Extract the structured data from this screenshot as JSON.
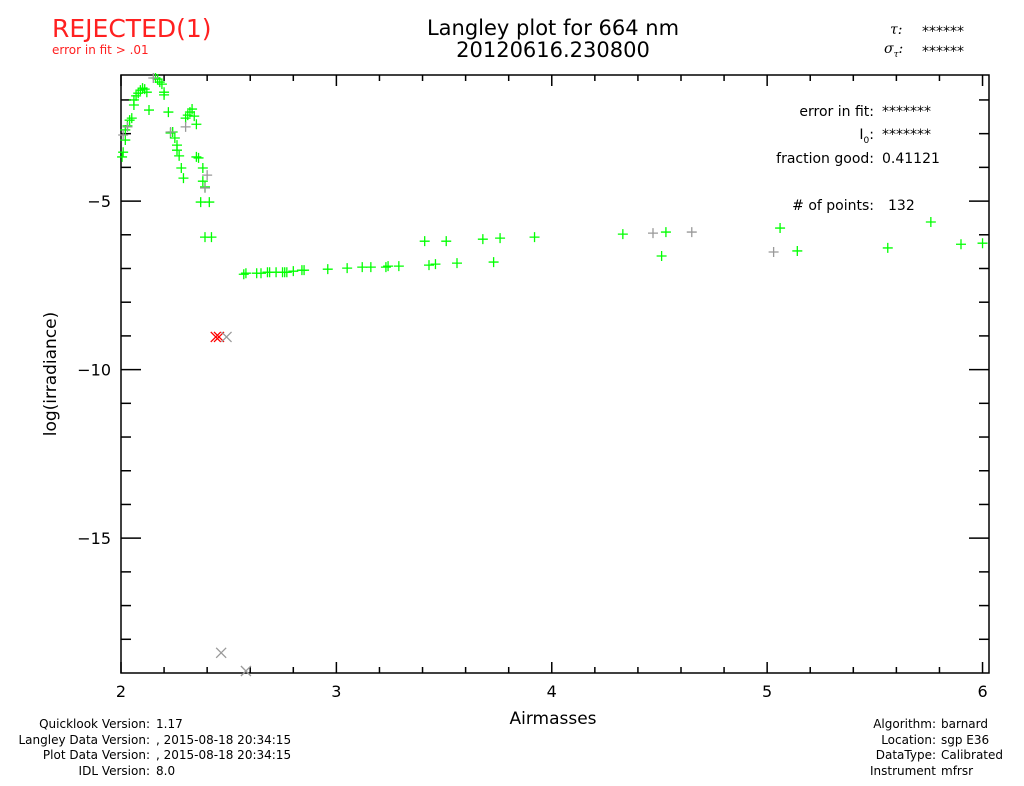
{
  "status": {
    "label": "REJECTED(1)",
    "reason": "error in fit > .01"
  },
  "stats_top": {
    "tau_label": "τ:",
    "tau_value": "******",
    "sigma_label": "σ",
    "sigma_sub": "τ",
    "sigma_colon": ":",
    "sigma_value": "******"
  },
  "stats_box": {
    "error_label": "error in fit:",
    "error_value": "*******",
    "i0_label": "I",
    "i0_sub": "0",
    "i0_colon": ":",
    "i0_value": "*******",
    "fraction_label": "fraction good:",
    "fraction_value": "0.41121",
    "points_label": "# of points:",
    "points_value": "132"
  },
  "footer_left": [
    {
      "label": "Quicklook Version:",
      "value": "1.17"
    },
    {
      "label": "Langley Data Version:",
      "value": ", 2015-08-18 20:34:15"
    },
    {
      "label": "Plot Data Version:",
      "value": ", 2015-08-18 20:34:15"
    },
    {
      "label": "IDL Version:",
      "value": "8.0"
    }
  ],
  "footer_right": [
    {
      "label": "Algorithm:",
      "value": "barnard"
    },
    {
      "label": "Location:",
      "value": "sgp E36"
    },
    {
      "label": "DataType:",
      "value": "Calibrated"
    },
    {
      "label": "Instrument",
      "value": "mfrsr"
    }
  ],
  "colors": {
    "good": "#00ff00",
    "excluded": "#999999",
    "rejected": "#ff0000"
  },
  "chart_data": {
    "type": "scatter",
    "title": "Langley plot for 664 nm",
    "subtitle": "20120616.230800",
    "xlabel": "Airmasses",
    "ylabel": "log(irradiance)",
    "xlim": [
      2,
      6.03
    ],
    "ylim": [
      -19.0,
      -1.26
    ],
    "xticks": [
      2,
      3,
      4,
      5,
      6
    ],
    "xtick_labels": [
      "2",
      "3",
      "4",
      "5",
      "6"
    ],
    "yticks": [
      -5,
      -10,
      -15
    ],
    "ytick_labels": [
      "−5",
      "−10",
      "−15"
    ],
    "series": [
      {
        "name": "good",
        "marker": "plus",
        "color": "#00ff00",
        "points": [
          [
            2.005,
            -3.69
          ],
          [
            2.01,
            -3.55
          ],
          [
            2.02,
            -3.19
          ],
          [
            2.02,
            -2.89
          ],
          [
            2.03,
            -2.77
          ],
          [
            2.04,
            -2.6
          ],
          [
            2.05,
            -2.54
          ],
          [
            2.06,
            -2.15
          ],
          [
            2.06,
            -2.0
          ],
          [
            2.07,
            -1.88
          ],
          [
            2.08,
            -1.8
          ],
          [
            2.09,
            -1.71
          ],
          [
            2.1,
            -1.65
          ],
          [
            2.11,
            -1.68
          ],
          [
            2.12,
            -1.77
          ],
          [
            2.13,
            -2.3
          ],
          [
            2.16,
            -1.35
          ],
          [
            2.17,
            -1.38
          ],
          [
            2.18,
            -1.47
          ],
          [
            2.19,
            -1.53
          ],
          [
            2.2,
            -1.85
          ],
          [
            2.2,
            -1.77
          ],
          [
            2.22,
            -2.36
          ],
          [
            2.23,
            -2.98
          ],
          [
            2.24,
            -2.95
          ],
          [
            2.25,
            -3.13
          ],
          [
            2.26,
            -3.34
          ],
          [
            2.26,
            -3.49
          ],
          [
            2.27,
            -3.66
          ],
          [
            2.28,
            -4.02
          ],
          [
            2.29,
            -4.32
          ],
          [
            2.3,
            -2.54
          ],
          [
            2.31,
            -2.45
          ],
          [
            2.32,
            -2.36
          ],
          [
            2.33,
            -2.27
          ],
          [
            2.34,
            -2.48
          ],
          [
            2.35,
            -2.72
          ],
          [
            2.35,
            -3.69
          ],
          [
            2.36,
            -3.72
          ],
          [
            2.38,
            -4.02
          ],
          [
            2.38,
            -4.41
          ],
          [
            2.37,
            -5.03
          ],
          [
            2.39,
            -4.58
          ],
          [
            2.41,
            -5.03
          ],
          [
            2.39,
            -6.07
          ],
          [
            2.42,
            -6.07
          ],
          [
            2.57,
            -7.17
          ],
          [
            2.58,
            -7.14
          ],
          [
            2.63,
            -7.14
          ],
          [
            2.65,
            -7.14
          ],
          [
            2.68,
            -7.11
          ],
          [
            2.69,
            -7.11
          ],
          [
            2.72,
            -7.11
          ],
          [
            2.75,
            -7.11
          ],
          [
            2.76,
            -7.11
          ],
          [
            2.77,
            -7.11
          ],
          [
            2.8,
            -7.08
          ],
          [
            2.84,
            -7.05
          ],
          [
            2.85,
            -7.05
          ],
          [
            2.96,
            -7.02
          ],
          [
            3.05,
            -6.99
          ],
          [
            3.12,
            -6.96
          ],
          [
            3.16,
            -6.96
          ],
          [
            3.23,
            -6.96
          ],
          [
            3.24,
            -6.93
          ],
          [
            3.29,
            -6.93
          ],
          [
            3.41,
            -6.19
          ],
          [
            3.43,
            -6.9
          ],
          [
            3.46,
            -6.87
          ],
          [
            3.51,
            -6.19
          ],
          [
            3.56,
            -6.84
          ],
          [
            3.68,
            -6.13
          ],
          [
            3.73,
            -6.81
          ],
          [
            3.76,
            -6.1
          ],
          [
            3.92,
            -6.07
          ],
          [
            4.33,
            -5.98
          ],
          [
            4.51,
            -6.63
          ],
          [
            4.53,
            -5.92
          ],
          [
            5.06,
            -5.8
          ],
          [
            5.14,
            -6.48
          ],
          [
            5.56,
            -6.39
          ],
          [
            5.76,
            -5.62
          ],
          [
            5.9,
            -6.28
          ],
          [
            6.0,
            -6.25
          ]
        ]
      },
      {
        "name": "excluded",
        "marker": "plus",
        "color": "#999999",
        "points": [
          [
            2.01,
            -3.04
          ],
          [
            2.03,
            -2.8
          ],
          [
            2.15,
            -1.35
          ],
          [
            2.23,
            -2.95
          ],
          [
            2.3,
            -2.8
          ],
          [
            2.39,
            -4.61
          ],
          [
            2.4,
            -4.23
          ],
          [
            4.47,
            -5.95
          ],
          [
            4.65,
            -5.92
          ],
          [
            5.03,
            -6.51
          ]
        ]
      },
      {
        "name": "rejected",
        "marker": "x",
        "color": "#ff0000",
        "points": [
          [
            2.44,
            -9.03
          ],
          [
            2.455,
            -9.03
          ]
        ]
      },
      {
        "name": "rejected-excluded",
        "marker": "x",
        "color": "#999999",
        "points": [
          [
            2.49,
            -9.03
          ],
          [
            2.465,
            -18.4
          ],
          [
            2.58,
            -19.0
          ]
        ]
      }
    ]
  }
}
